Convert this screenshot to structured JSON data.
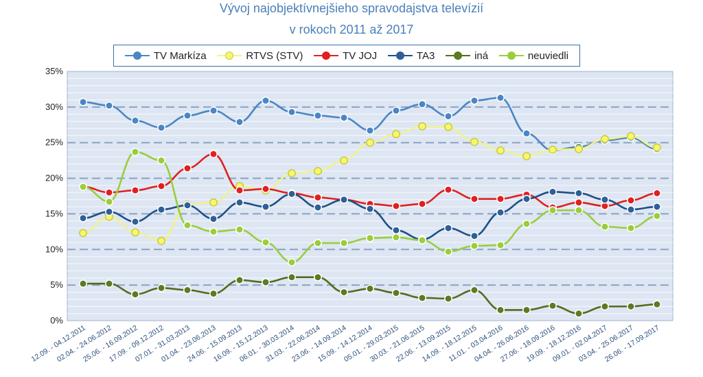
{
  "chart_data": {
    "type": "line",
    "title": "Vývoj najobjektívnejšieho spravodajstva televízií",
    "subtitle": "v rokoch 2011 až 2017",
    "ylim": [
      0,
      35
    ],
    "yticks": [
      "0%",
      "5%",
      "10%",
      "15%",
      "20%",
      "25%",
      "30%",
      "35%"
    ],
    "ytick_values": [
      0,
      5,
      10,
      15,
      20,
      25,
      30,
      35
    ],
    "legend_position": "top",
    "grid": true,
    "categories": [
      "12.09. - 04.12.2011",
      "02.04. - 24.06.2012",
      "25.06. - 16.09.2012",
      "17.09. - 09.12.2012",
      "07.01. - 31.03.2013",
      "01.04. - 23.06.2013",
      "24.06. - 15.09.2013",
      "16.09. - 15.12.2013",
      "06.01. - 30.03.2014",
      "31.03. - 22.06.2014",
      "23.06. - 14.09.2014",
      "15.09. - 14.12.2014",
      "05.01. - 29.03.2015",
      "30.03. - 21.06.2015",
      "22.06. - 13.09.2015",
      "14.09. - 18.12.2015",
      "11.01. - 03.04.2016",
      "04.04. - 26.06.2016",
      "27.06. - 18.09.2016",
      "19.09. - 18.12.2016",
      "09.01. - 02.04.2017",
      "03.04. - 25.06.2017",
      "26.06. - 17.09.2017"
    ],
    "series": [
      {
        "name": "TV Markíza",
        "color": "#4a86c5",
        "marker_fill": "#4a86c5",
        "line_style": "solid",
        "values": [
          30.7,
          30.2,
          28.1,
          27.1,
          28.8,
          29.5,
          27.9,
          30.9,
          29.3,
          28.8,
          28.5,
          26.7,
          29.5,
          30.4,
          28.7,
          30.9,
          31.3,
          26.3,
          23.9,
          24.4,
          25.3,
          25.7,
          24.1
        ]
      },
      {
        "name": "RTVS (STV)",
        "color": "#f2f28a",
        "marker_fill": "#f7f76a",
        "line_style": "solid",
        "values": [
          12.3,
          14.6,
          12.4,
          11.2,
          16.3,
          16.6,
          18.9,
          18.3,
          20.7,
          21.0,
          22.5,
          25.0,
          26.2,
          27.3,
          27.2,
          25.1,
          23.9,
          23.1,
          24.0,
          24.1,
          25.5,
          25.9,
          24.3
        ]
      },
      {
        "name": "TV JOJ",
        "color": "#e02020",
        "marker_fill": "#e02020",
        "line_style": "solid",
        "values": [
          18.8,
          18.0,
          18.3,
          18.9,
          21.4,
          23.4,
          18.3,
          18.5,
          17.9,
          17.3,
          17.0,
          16.4,
          16.1,
          16.4,
          18.4,
          17.1,
          17.1,
          17.7,
          15.9,
          16.6,
          16.1,
          16.9,
          17.9
        ]
      },
      {
        "name": "TA3",
        "color": "#1e4f86",
        "marker_fill": "#2f5f98",
        "line_style": "solid",
        "values": [
          14.4,
          15.3,
          13.9,
          15.6,
          16.2,
          14.3,
          16.6,
          16.0,
          17.8,
          15.9,
          17.0,
          15.7,
          12.7,
          11.4,
          13.0,
          11.9,
          15.2,
          17.1,
          18.1,
          17.9,
          17.0,
          15.6,
          16.0
        ]
      },
      {
        "name": "iná",
        "color": "#556b1f",
        "marker_fill": "#5e7a22",
        "line_style": "solid",
        "values": [
          5.2,
          5.2,
          3.7,
          4.6,
          4.3,
          3.8,
          5.7,
          5.4,
          6.1,
          6.1,
          4.0,
          4.5,
          3.9,
          3.2,
          3.1,
          4.3,
          1.5,
          1.5,
          2.1,
          1.0,
          2.0,
          2.0,
          2.3
        ]
      },
      {
        "name": "neuviedli",
        "color": "#9acd3c",
        "marker_fill": "#9acd3c",
        "line_style": "solid",
        "values": [
          18.8,
          16.7,
          23.7,
          22.5,
          13.4,
          12.5,
          12.8,
          11.0,
          8.2,
          10.9,
          10.9,
          11.6,
          11.7,
          11.3,
          9.7,
          10.5,
          10.6,
          13.6,
          15.5,
          15.5,
          13.2,
          13.0,
          14.7
        ]
      }
    ]
  }
}
